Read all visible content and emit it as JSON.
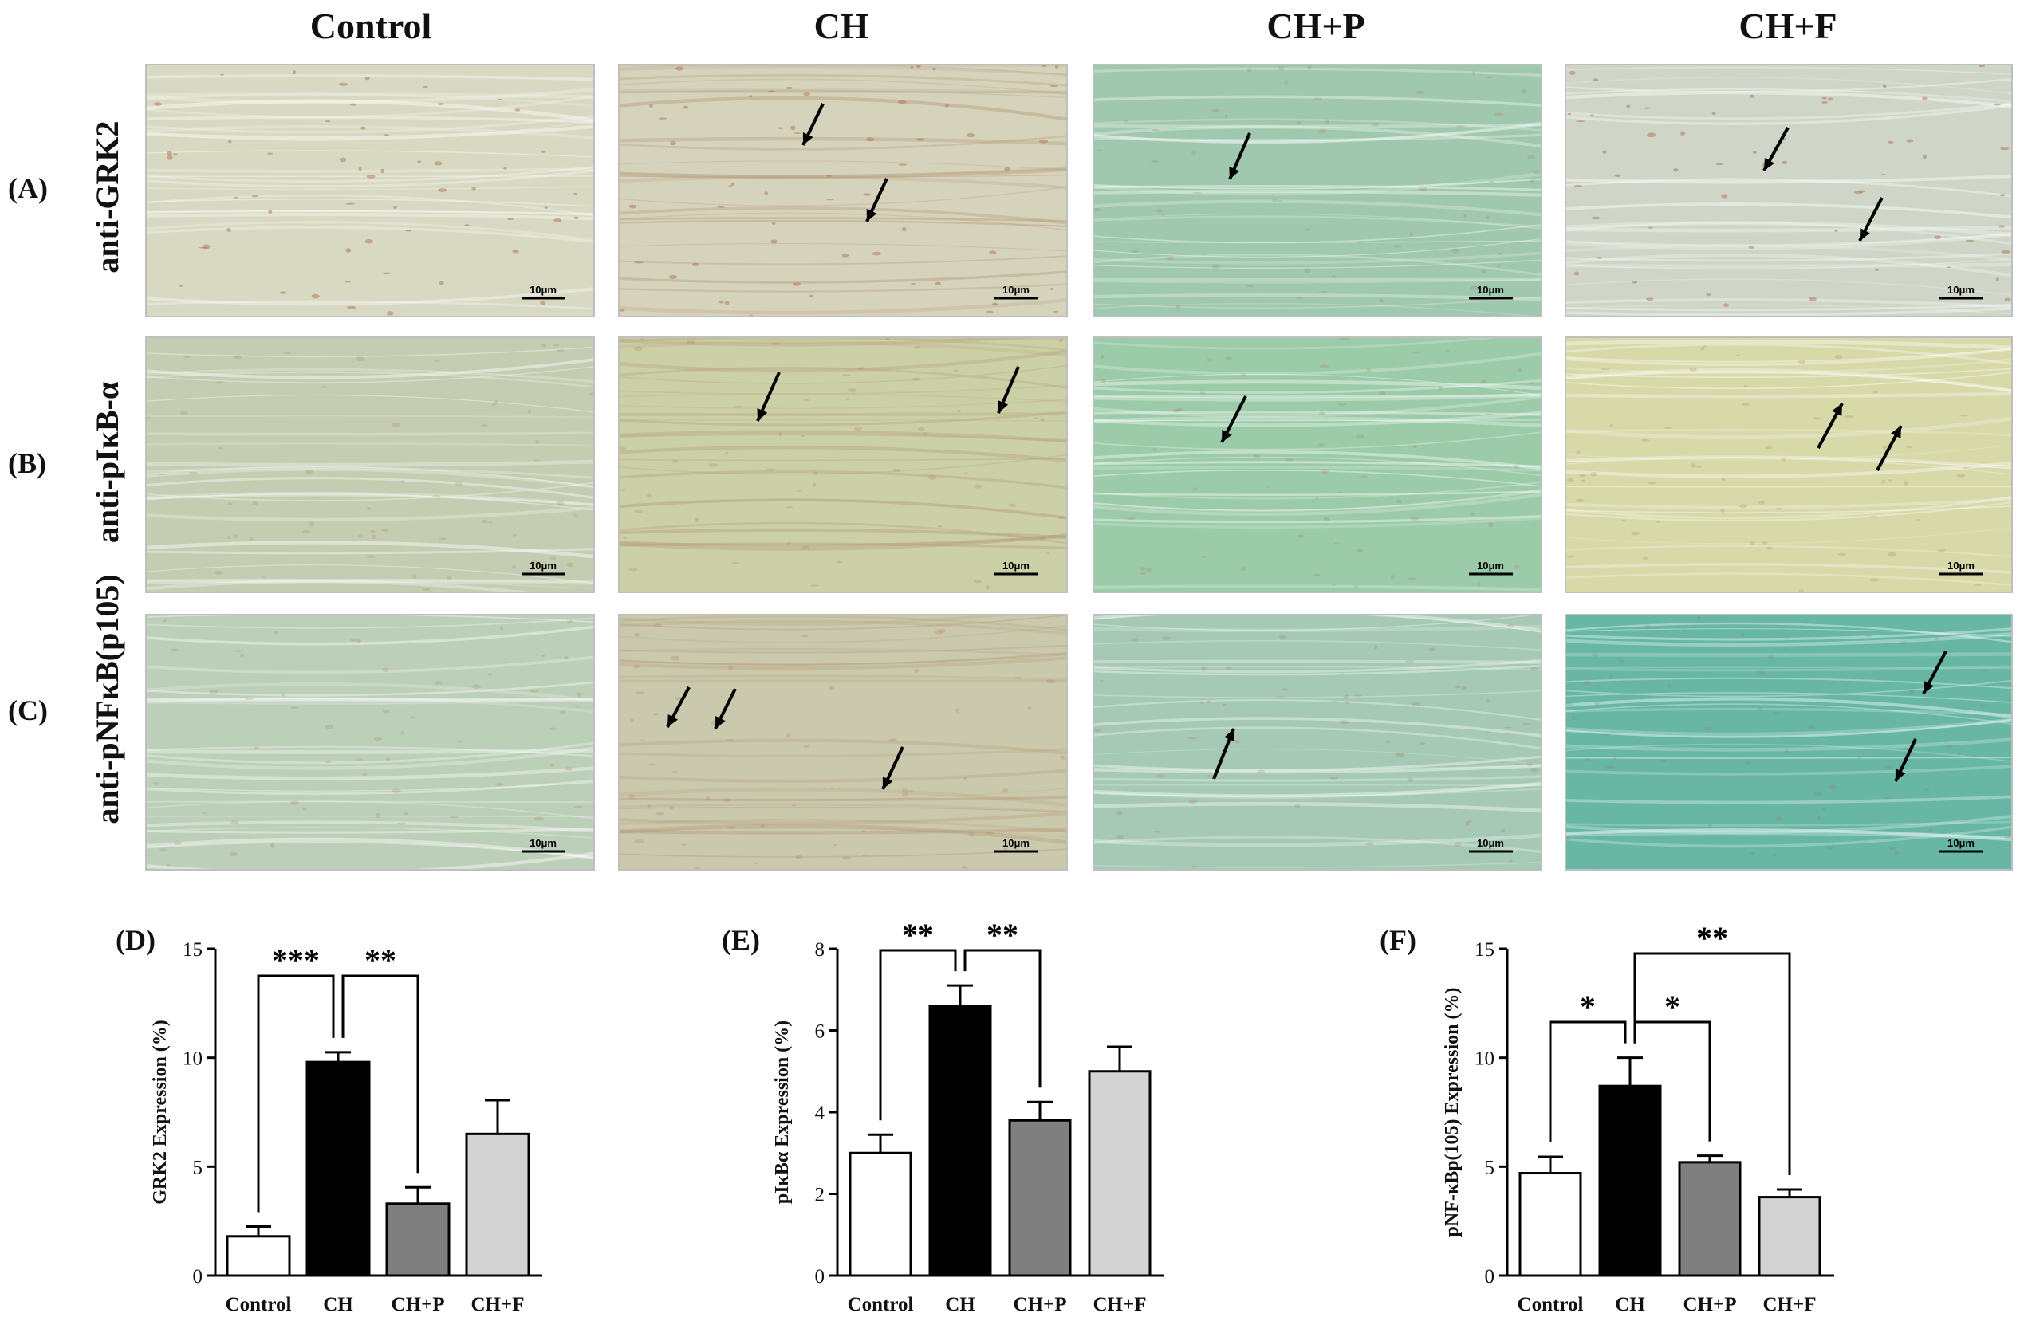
{
  "columns": [
    "Control",
    "CH",
    "CH+P",
    "CH+F"
  ],
  "rows": [
    {
      "letter": "(A)",
      "label": "anti-GRK2"
    },
    {
      "letter": "(B)",
      "label": "anti-pIκB-α"
    },
    {
      "letter": "(C)",
      "label": "anti-pNFκB(p105)"
    }
  ],
  "scale_bar_label": "10μm",
  "panel_tints": [
    [
      "#d8d9c2",
      "#d6d3bd",
      "#9fc8ae",
      "#cfd6c8"
    ],
    [
      "#c4cdb2",
      "#cbd0a6",
      "#9ccba9",
      "#d7d9a9"
    ],
    [
      "#bccfb9",
      "#cac9ad",
      "#a6c9b6",
      "#67b7a4"
    ]
  ],
  "chart_data": [
    {
      "letter": "(D)",
      "type": "bar",
      "categories": [
        "Control",
        "CH",
        "CH+P",
        "CH+F"
      ],
      "values": [
        1.8,
        9.8,
        3.3,
        6.5
      ],
      "errors": [
        0.45,
        0.45,
        0.75,
        1.55
      ],
      "ylabel": "GRK2 Expression (%)",
      "ylim": [
        0,
        15
      ],
      "yticks": [
        0,
        5,
        10,
        15
      ],
      "fills": [
        "#ffffff",
        "#000000",
        "#7f7f7f",
        "#d3d3d3"
      ],
      "significance": [
        {
          "from": 0,
          "to": 1,
          "label": "***"
        },
        {
          "from": 1,
          "to": 2,
          "label": "**"
        }
      ]
    },
    {
      "letter": "(E)",
      "type": "bar",
      "categories": [
        "Control",
        "CH",
        "CH+P",
        "CH+F"
      ],
      "values": [
        3.0,
        6.6,
        3.8,
        5.0
      ],
      "errors": [
        0.45,
        0.5,
        0.45,
        0.6
      ],
      "ylabel": "pIκBα Expression (%)",
      "ylim": [
        0,
        8
      ],
      "yticks": [
        0,
        2,
        4,
        6,
        8
      ],
      "fills": [
        "#ffffff",
        "#000000",
        "#7f7f7f",
        "#d3d3d3"
      ],
      "significance": [
        {
          "from": 0,
          "to": 1,
          "label": "**"
        },
        {
          "from": 1,
          "to": 2,
          "label": "**"
        }
      ]
    },
    {
      "letter": "(F)",
      "type": "bar",
      "categories": [
        "Control",
        "CH",
        "CH+P",
        "CH+F"
      ],
      "values": [
        4.7,
        8.7,
        5.2,
        3.6
      ],
      "errors": [
        0.75,
        1.3,
        0.3,
        0.35
      ],
      "ylabel": "pNF-κBp(105) Expression (%)",
      "ylim": [
        0,
        15
      ],
      "yticks": [
        0,
        5,
        10,
        15
      ],
      "fills": [
        "#ffffff",
        "#000000",
        "#7f7f7f",
        "#d3d3d3"
      ],
      "significance": [
        {
          "from": 0,
          "to": 1,
          "label": "*"
        },
        {
          "from": 1,
          "to": 2,
          "label": "*"
        },
        {
          "from": 1,
          "to": 3,
          "label": "**"
        }
      ]
    }
  ]
}
